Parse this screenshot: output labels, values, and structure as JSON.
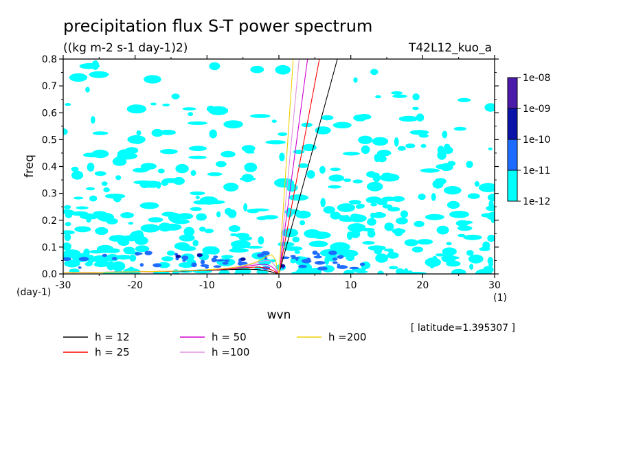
{
  "chart_data": {
    "type": "heatmap",
    "title": "precipitation flux S-T power spectrum",
    "units": "((kg m-2 s-1 day-1)2)",
    "run_label": "T42L12_kuo_a",
    "xlabel": "wvn",
    "xunit": "(1)",
    "ylabel": "freq",
    "yunit": "(day-1)",
    "xlim": [
      -30,
      30
    ],
    "ylim": [
      0,
      0.8
    ],
    "xticks": [
      -30,
      -20,
      -10,
      0,
      10,
      20,
      30
    ],
    "xtick_labels": [
      "-30",
      "-20",
      "-10",
      "0",
      "10",
      "20",
      "30"
    ],
    "yticks": [
      0,
      0.1,
      0.2,
      0.3,
      0.4,
      0.5,
      0.6,
      0.7,
      0.8
    ],
    "ytick_labels": [
      "0.0",
      "0.1",
      "0.2",
      "0.3",
      "0.4",
      "0.5",
      "0.6",
      "0.7",
      "0.8"
    ],
    "colorbar": {
      "labels": [
        "1e-08",
        "1e-09",
        "1e-10",
        "1e-11",
        "1e-12"
      ],
      "colors": [
        "#4b1aa8",
        "#0a14a8",
        "#1e6cff",
        "#00ffff"
      ]
    },
    "latitude_label": "[ latitude=1.395307 ]",
    "dispersion_curves": [
      {
        "name": "h = 12",
        "color": "#000000"
      },
      {
        "name": "h = 25",
        "color": "#ff0000"
      },
      {
        "name": "h = 50",
        "color": "#d000d0"
      },
      {
        "name": "h =100",
        "color": "#e090e0"
      },
      {
        "name": "h =200",
        "color": "#f0d000"
      }
    ]
  }
}
